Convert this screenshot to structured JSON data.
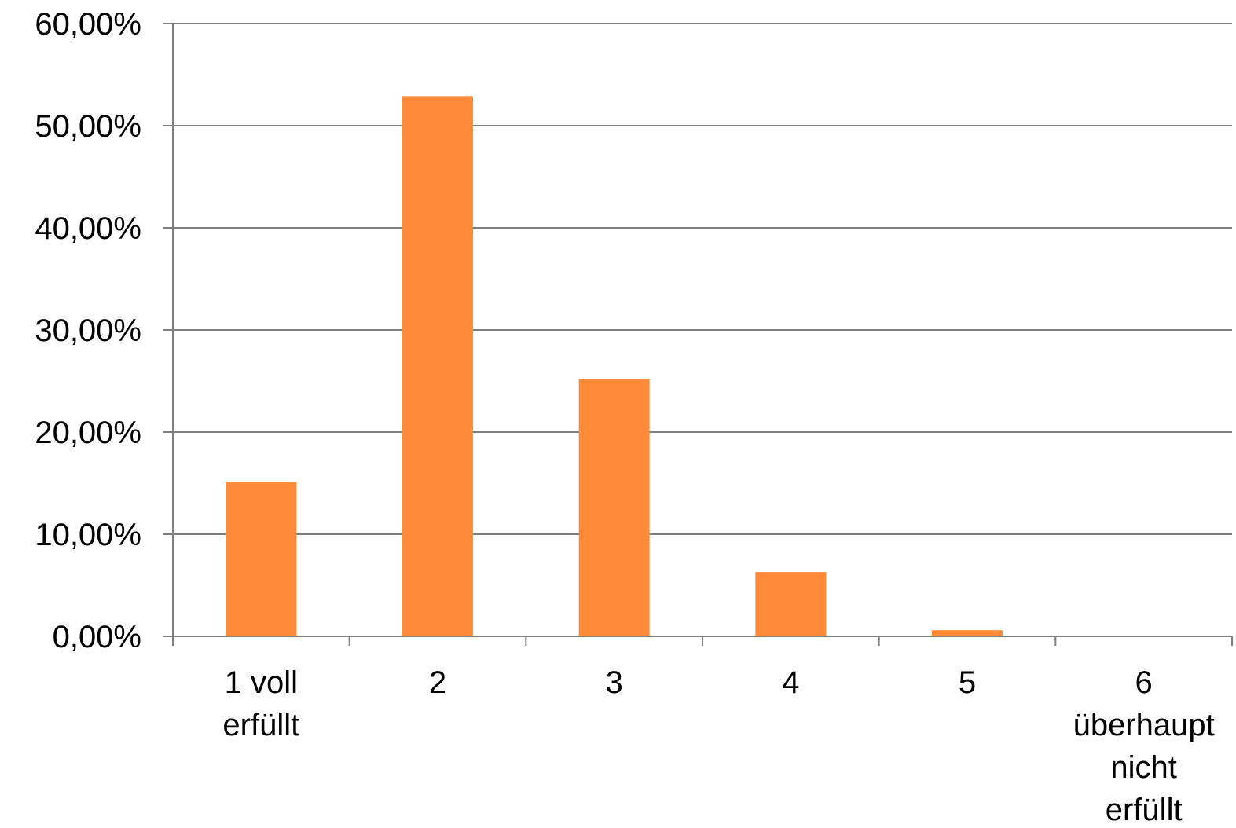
{
  "chart_data": {
    "type": "bar",
    "title": "",
    "xlabel": "",
    "ylabel": "",
    "categories": [
      [
        "1 voll",
        "erfüllt"
      ],
      [
        "2"
      ],
      [
        "3"
      ],
      [
        "4"
      ],
      [
        "5"
      ],
      [
        "6",
        "überhaupt",
        "nicht",
        "erfüllt"
      ]
    ],
    "values": [
      15.1,
      52.9,
      25.2,
      6.3,
      0.6,
      0.0
    ],
    "ylim": [
      0,
      60
    ],
    "yticks": [
      0,
      10,
      20,
      30,
      40,
      50,
      60
    ],
    "ytick_labels": [
      "0,00%",
      "10,00%",
      "20,00%",
      "30,00%",
      "40,00%",
      "50,00%",
      "60,00%"
    ],
    "grid": true,
    "legend": "none",
    "colors": {
      "bar": "#FF8A3A",
      "grid": "#7f7f7f",
      "axis": "#7f7f7f",
      "text": "#000000"
    }
  }
}
